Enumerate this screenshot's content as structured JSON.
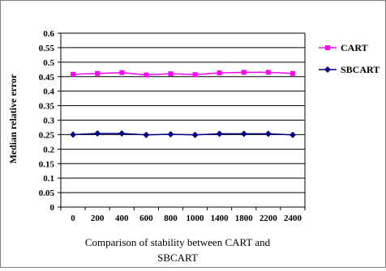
{
  "chart_data": {
    "type": "line",
    "title": "",
    "xlabel": "",
    "ylabel": "Median relative error",
    "x_categories": [
      "0",
      "200",
      "400",
      "600",
      "800",
      "1000",
      "1400",
      "1800",
      "2200",
      "2400"
    ],
    "ylim": [
      0,
      0.6
    ],
    "y_ticks": [
      "0",
      "0.05",
      "0.1",
      "0.15",
      "0.2",
      "0.25",
      "0.3",
      "0.35",
      "0.4",
      "0.45",
      "0.5",
      "0.55",
      "0.6"
    ],
    "grid": "horizontal",
    "legend_position": "right",
    "series": [
      {
        "name": "CART",
        "color": "#ff00ff",
        "marker": "square",
        "values": [
          0.458,
          0.461,
          0.464,
          0.456,
          0.46,
          0.457,
          0.463,
          0.465,
          0.465,
          0.461
        ]
      },
      {
        "name": "SBCART",
        "color": "#000080",
        "marker": "diamond",
        "values": [
          0.25,
          0.254,
          0.254,
          0.249,
          0.251,
          0.249,
          0.253,
          0.253,
          0.253,
          0.249
        ]
      }
    ]
  },
  "caption": {
    "line1": "Comparison of stability between CART and",
    "line2": "SBCART"
  }
}
